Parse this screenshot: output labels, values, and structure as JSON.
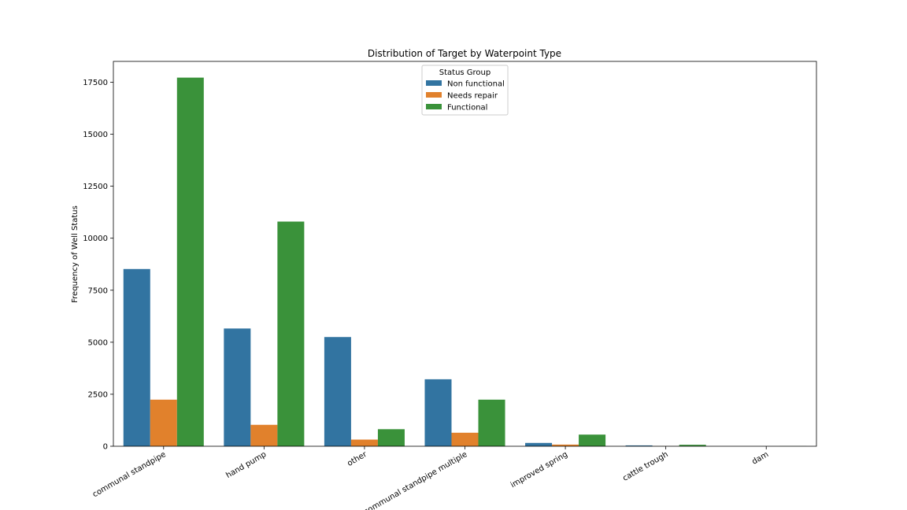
{
  "chart_data": {
    "type": "bar",
    "title": "Distribution of Target by Waterpoint Type",
    "xlabel": "",
    "ylabel": "Frequency of Well Status",
    "categories": [
      "communal standpipe",
      "hand pump",
      "other",
      "communal standpipe multiple",
      "improved spring",
      "cattle trough",
      "dam"
    ],
    "series": [
      {
        "name": "Non functional",
        "color": "#3274a1",
        "values": [
          8520,
          5660,
          5250,
          3220,
          160,
          40,
          0
        ]
      },
      {
        "name": "Needs repair",
        "color": "#e1812c",
        "values": [
          2240,
          1030,
          320,
          650,
          80,
          5,
          0
        ]
      },
      {
        "name": "Functional",
        "color": "#3a923a",
        "values": [
          17720,
          10800,
          820,
          2240,
          560,
          70,
          5
        ]
      }
    ],
    "ylim": [
      0,
      18500
    ],
    "yticks": [
      0,
      2500,
      5000,
      7500,
      10000,
      12500,
      15000,
      17500
    ],
    "legend": {
      "title": "Status Group",
      "position": "upper center"
    },
    "grid": false
  }
}
